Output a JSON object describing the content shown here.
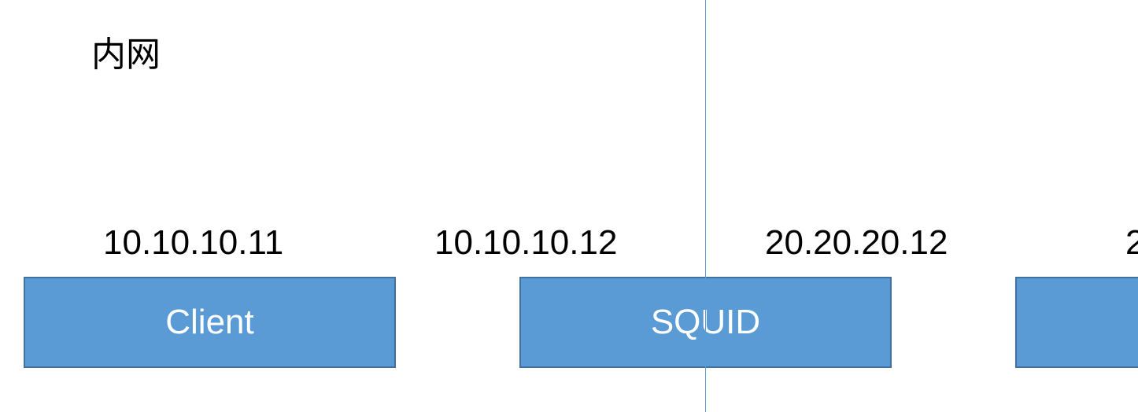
{
  "diagram": {
    "zone_label": "内网",
    "nodes": [
      {
        "label": "Client",
        "ip": "10.10.10.11"
      },
      {
        "label": "SQUID",
        "ip_left": "10.10.10.12",
        "ip_right": "20.20.20.12"
      },
      {
        "label": "",
        "ip": "2"
      }
    ],
    "colors": {
      "box_fill": "#5b9bd5",
      "box_border": "#41719c",
      "divider": "#5b9bd5",
      "text": "#000000",
      "box_text": "#ffffff"
    }
  }
}
